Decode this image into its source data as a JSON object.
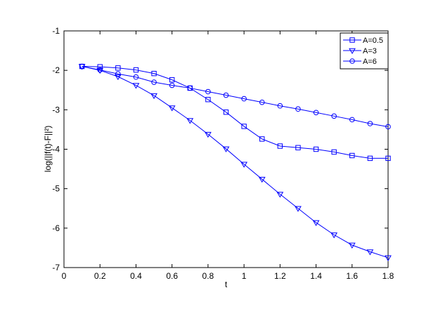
{
  "chart_data": {
    "type": "line",
    "xlabel": "t",
    "ylabel": "log(||f(t)-F||²)",
    "xlim": [
      0,
      1.8
    ],
    "ylim": [
      -7,
      -1
    ],
    "xticks": [
      "0",
      "0.2",
      "0.4",
      "0.6",
      "0.8",
      "1",
      "1.2",
      "1.4",
      "1.6",
      "1.8"
    ],
    "yticks": [
      "-7",
      "-6",
      "-5",
      "-4",
      "-3",
      "-2",
      "-1"
    ],
    "grid": false,
    "legend_position": "top-right",
    "line_color": "#0000ff",
    "x": [
      0.1,
      0.2,
      0.3,
      0.4,
      0.5,
      0.6,
      0.7,
      0.8,
      0.9,
      1.0,
      1.1,
      1.2,
      1.3,
      1.4,
      1.5,
      1.6,
      1.7,
      1.8
    ],
    "series": [
      {
        "name": "A=0.5",
        "marker": "square",
        "values": [
          -1.9,
          -1.91,
          -1.94,
          -1.99,
          -2.08,
          -2.24,
          -2.45,
          -2.74,
          -3.06,
          -3.42,
          -3.74,
          -3.92,
          -3.96,
          -4.0,
          -4.07,
          -4.16,
          -4.23,
          -4.23
        ]
      },
      {
        "name": "A=3",
        "marker": "triangle-down",
        "values": [
          -1.9,
          -2.0,
          -2.16,
          -2.38,
          -2.64,
          -2.95,
          -3.27,
          -3.62,
          -3.99,
          -4.38,
          -4.76,
          -5.14,
          -5.5,
          -5.86,
          -6.17,
          -6.43,
          -6.6,
          -6.75
        ]
      },
      {
        "name": "A=6",
        "marker": "circle",
        "values": [
          -1.9,
          -1.99,
          -2.09,
          -2.17,
          -2.3,
          -2.38,
          -2.45,
          -2.54,
          -2.63,
          -2.72,
          -2.81,
          -2.9,
          -2.98,
          -3.07,
          -3.16,
          -3.25,
          -3.35,
          -3.43
        ]
      }
    ]
  }
}
